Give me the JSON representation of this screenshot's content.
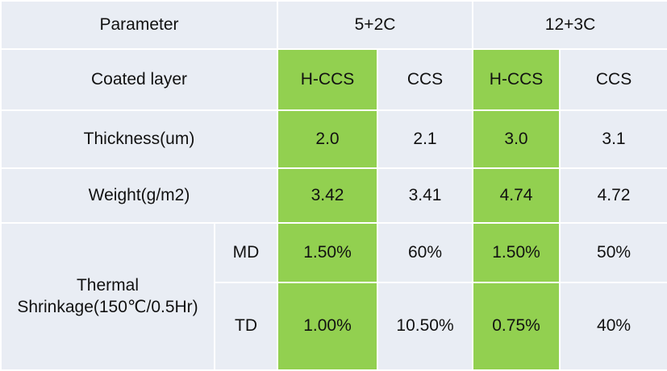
{
  "header": {
    "parameter": "Parameter",
    "group_a": "5+2C",
    "group_b": "12+3C"
  },
  "colors": {
    "cell_background": "#e9edf4",
    "highlight": "#92d050",
    "grid_line": "#ffffff"
  },
  "rows": {
    "coated_layer": {
      "label": "Coated layer",
      "values": [
        "H-CCS",
        "CCS",
        "H-CCS",
        "CCS"
      ]
    },
    "thickness": {
      "label": "Thickness(um)",
      "values": [
        "2.0",
        "2.1",
        "3.0",
        "3.1"
      ]
    },
    "weight": {
      "label": "Weight(g/m2)",
      "values": [
        "3.42",
        "3.41",
        "4.74",
        "4.72"
      ]
    },
    "thermal": {
      "label_line1": "Thermal",
      "label_line2": "Shrinkage(150℃/0.5Hr)",
      "md": {
        "label": "MD",
        "values": [
          "1.50%",
          "60%",
          "1.50%",
          "50%"
        ]
      },
      "td": {
        "label": "TD",
        "values": [
          "1.00%",
          "10.50%",
          "0.75%",
          "40%"
        ]
      }
    }
  }
}
